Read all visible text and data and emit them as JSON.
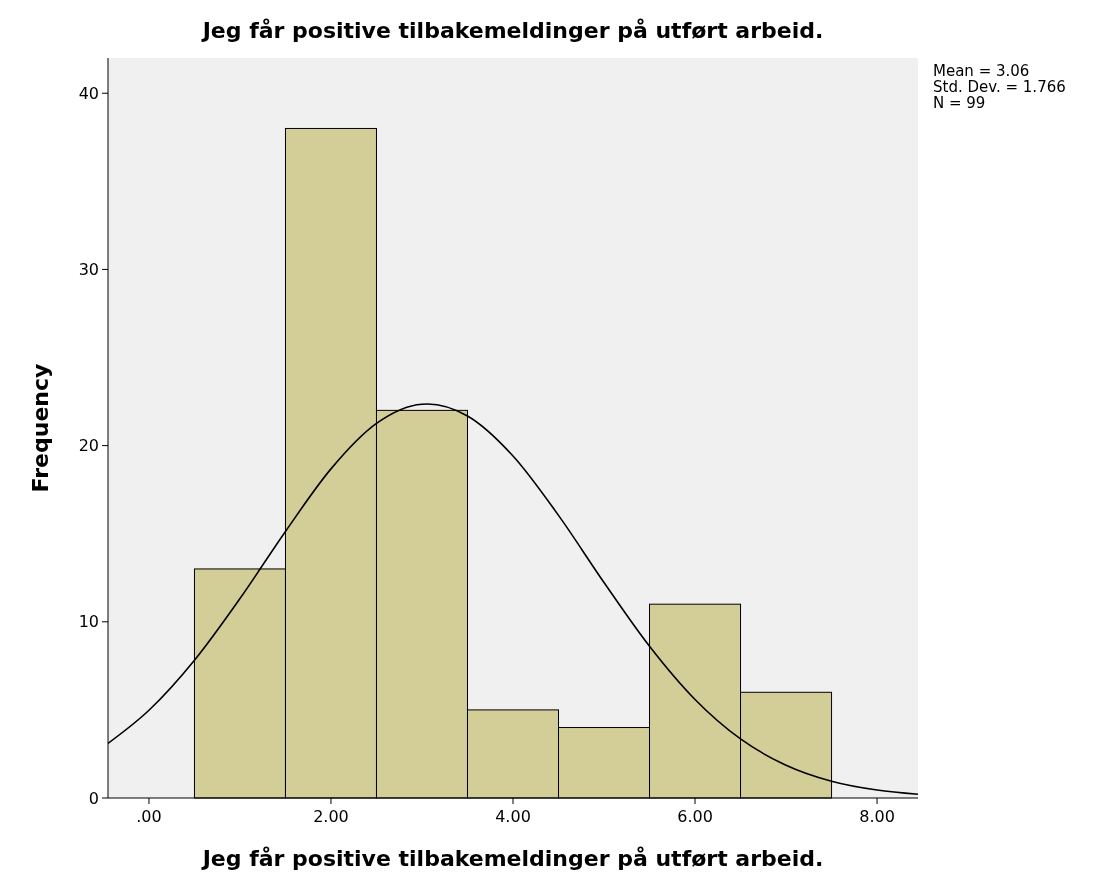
{
  "chart_data": {
    "type": "histogram",
    "title": "Jeg får positive tilbakemeldinger på utført arbeid.",
    "xlabel": "Jeg får positive tilbakemeldinger på utført arbeid.",
    "ylabel": "Frequency",
    "bins": [
      0.5,
      1.5,
      2.5,
      3.5,
      4.5,
      5.5,
      6.5,
      7.5
    ],
    "values": [
      13,
      38,
      22,
      5,
      4,
      11,
      6
    ],
    "color": "#d3ce97",
    "series": [
      {
        "type": "line",
        "color": "#000000",
        "x": [
          -0.45,
          0,
          0.5,
          1,
          1.5,
          2,
          2.5,
          3,
          3.06,
          3.5,
          4,
          4.5,
          5,
          5.5,
          6,
          6.5,
          7,
          7.5,
          8,
          8.45
        ],
        "values": [
          3.1,
          4.98,
          7.82,
          11.32,
          15.13,
          18.68,
          21.26,
          22.35,
          22.36,
          21.68,
          19.41,
          16.04,
          12.23,
          8.61,
          5.59,
          3.35,
          1.86,
          0.95,
          0.45,
          0.21
        ]
      }
    ],
    "xlim": [
      -0.45,
      8.45
    ],
    "xticks": [
      {
        "value": 0,
        "label": ".00"
      },
      {
        "value": 2,
        "label": "2.00"
      },
      {
        "value": 4,
        "label": "4.00"
      },
      {
        "value": 6,
        "label": "6.00"
      },
      {
        "value": 8,
        "label": "8.00"
      }
    ],
    "ylim": [
      0,
      42
    ],
    "yticks": [
      0,
      10,
      20,
      30,
      40
    ],
    "annotations": [
      "Mean = 3.06",
      "Std. Dev. = 1.766",
      "N = 99"
    ]
  }
}
